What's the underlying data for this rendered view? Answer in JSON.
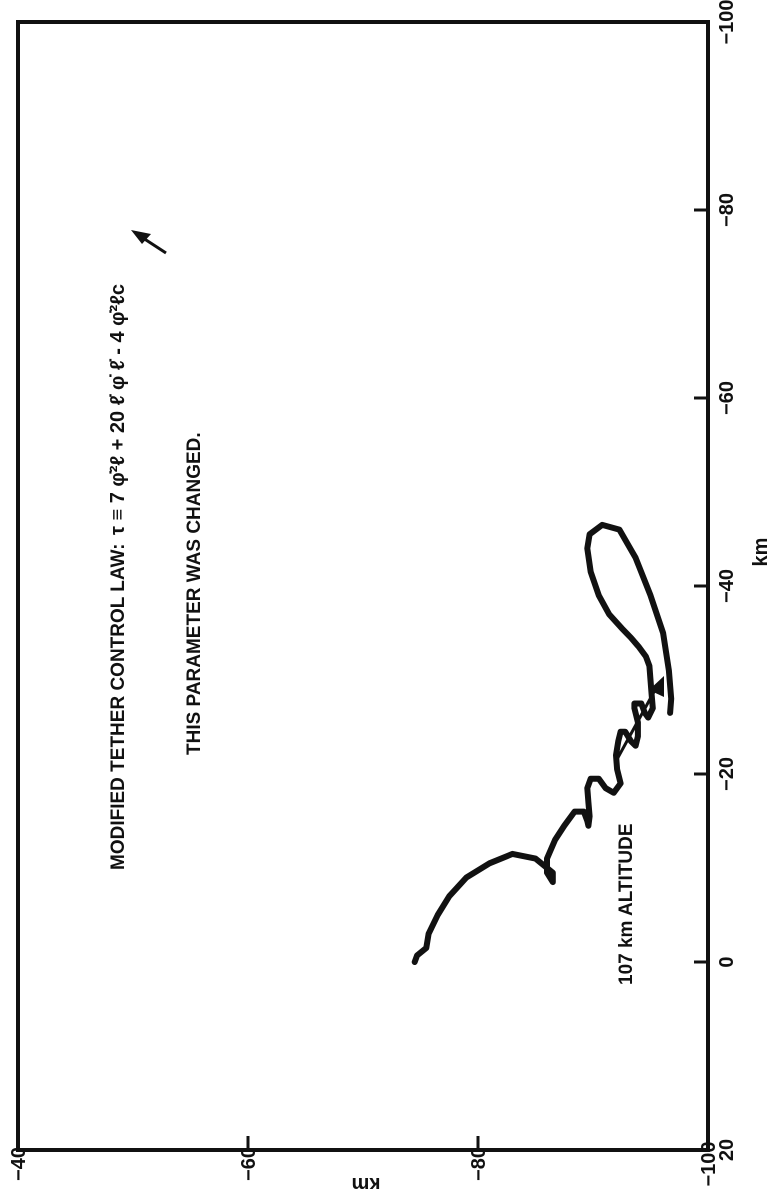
{
  "chart_data": {
    "type": "line",
    "title": "",
    "xlabel": "km",
    "ylabel": "km",
    "xlim": [
      20,
      -100
    ],
    "ylim": [
      -100,
      -40
    ],
    "x_ticks": [
      "20",
      "0",
      "−20",
      "−40",
      "−60",
      "−80",
      "−100"
    ],
    "y_ticks": [
      "−40",
      "−60",
      "−80",
      "−100"
    ],
    "x_tick_values": [
      20,
      0,
      -20,
      -40,
      -60,
      -80,
      -100
    ],
    "y_tick_values": [
      -40,
      -60,
      -80,
      -100
    ],
    "grid": false,
    "annotations": {
      "control_law_label": "MODIFIED TETHER CONTROL LAW:",
      "control_law_equation": "τ ≡ 7 φ̇²ℓ + 20 ℓ̇ φ̇ ℓ̇ - 4 φ̇²ℓc",
      "parameter_note": "THIS PARAMETER WAS CHANGED.",
      "altitude_note": "107 km ALTITUDE"
    },
    "series": [
      {
        "x": [
          0,
          -0.7,
          -1.5,
          -3,
          -5,
          -7,
          -9,
          -10.5,
          -11.5,
          -11,
          -9.5,
          -8.5,
          -9.5,
          -11,
          -13,
          -14.5,
          -16,
          -16,
          -15,
          -14.5,
          -15.5,
          -17,
          -18.5,
          -19.5,
          -19.5,
          -18.5,
          -18,
          -19,
          -20.5,
          -22,
          -23.5,
          -24.5,
          -24.5,
          -23.5,
          -23,
          -24,
          -25.5,
          -27,
          -27.5,
          -27.5,
          -26.5,
          -26,
          -27,
          -28.5,
          -30,
          -31.5,
          -32.5,
          -33.5,
          -34.5,
          -35.5,
          -37,
          -39,
          -41.5,
          -44,
          -45.5,
          -46.5,
          -46,
          -43,
          -39,
          -35,
          -31,
          -28,
          -26.5
        ],
        "y": [
          -74.5,
          -74.7,
          -75.5,
          -75.7,
          -76.5,
          -77.5,
          -79,
          -81,
          -83,
          -85,
          -86.5,
          -86.5,
          -86,
          -86,
          -86.7,
          -87.5,
          -88.4,
          -89.2,
          -89.5,
          -89.6,
          -89.7,
          -89.6,
          -89.5,
          -89.8,
          -90.5,
          -91.1,
          -91.8,
          -92.4,
          -92.1,
          -92,
          -92.2,
          -92.4,
          -92.8,
          -93.3,
          -93.7,
          -93.9,
          -93.9,
          -93.6,
          -93.6,
          -94.2,
          -94.5,
          -94.8,
          -95.2,
          -95.1,
          -95,
          -94.9,
          -94.6,
          -94,
          -93.3,
          -92.5,
          -91.4,
          -90.5,
          -89.8,
          -89.5,
          -89.7,
          -90.8,
          -92.3,
          -93.7,
          -95,
          -96.1,
          -96.6,
          -96.8,
          -96.7
        ]
      }
    ]
  }
}
